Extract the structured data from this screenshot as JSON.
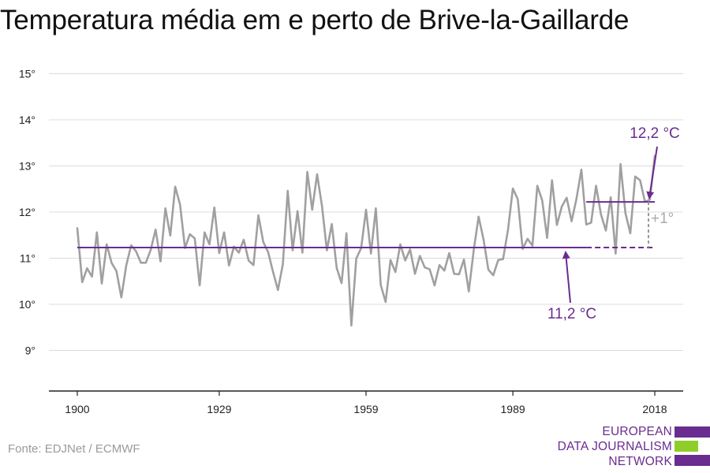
{
  "chart_data": {
    "type": "line",
    "title": "Temperatura média em e perto de Brive-la-Gaillarde",
    "xlabel": "",
    "ylabel": "",
    "xlim": [
      1900,
      2018
    ],
    "ylim": [
      8,
      15
    ],
    "y_ticks": [
      9,
      10,
      11,
      12,
      13,
      14,
      15
    ],
    "y_tick_labels": [
      "9°",
      "10°",
      "11°",
      "12°",
      "13°",
      "14°",
      "15°"
    ],
    "x_ticks": [
      1900,
      1929,
      1959,
      1989,
      2018
    ],
    "x_tick_labels": [
      "1900",
      "1929",
      "1959",
      "1989",
      "2018"
    ],
    "grid": true,
    "series": [
      {
        "color": "#a0a0a0",
        "x": [
          1900,
          1901,
          1902,
          1903,
          1904,
          1905,
          1906,
          1907,
          1908,
          1909,
          1910,
          1911,
          1912,
          1913,
          1914,
          1915,
          1916,
          1917,
          1918,
          1919,
          1920,
          1921,
          1922,
          1923,
          1924,
          1925,
          1926,
          1927,
          1928,
          1929,
          1930,
          1931,
          1932,
          1933,
          1934,
          1935,
          1936,
          1937,
          1938,
          1939,
          1940,
          1941,
          1942,
          1943,
          1944,
          1945,
          1946,
          1947,
          1948,
          1949,
          1950,
          1951,
          1952,
          1953,
          1954,
          1955,
          1956,
          1957,
          1958,
          1959,
          1960,
          1961,
          1962,
          1963,
          1964,
          1965,
          1966,
          1967,
          1968,
          1969,
          1970,
          1971,
          1972,
          1973,
          1974,
          1975,
          1976,
          1977,
          1978,
          1979,
          1980,
          1981,
          1982,
          1983,
          1984,
          1985,
          1986,
          1987,
          1988,
          1989,
          1990,
          1991,
          1992,
          1993,
          1994,
          1995,
          1996,
          1997,
          1998,
          1999,
          2000,
          2001,
          2002,
          2003,
          2004,
          2005,
          2006,
          2007,
          2008,
          2009,
          2010,
          2011,
          2012,
          2013,
          2014,
          2015,
          2016,
          2017,
          2018
        ],
        "values": [
          11.65,
          10.48,
          10.78,
          10.6,
          11.56,
          10.45,
          11.3,
          10.9,
          10.72,
          10.15,
          10.84,
          11.28,
          11.15,
          10.9,
          10.9,
          11.18,
          11.62,
          10.93,
          12.08,
          11.49,
          12.55,
          12.16,
          11.22,
          11.52,
          11.43,
          10.41,
          11.56,
          11.3,
          12.1,
          11.11,
          11.56,
          10.84,
          11.25,
          11.12,
          11.4,
          10.95,
          10.85,
          11.93,
          11.35,
          11.13,
          10.7,
          10.31,
          10.87,
          12.46,
          11.17,
          12.02,
          11.12,
          12.87,
          12.05,
          12.82,
          12.13,
          11.17,
          11.74,
          10.79,
          10.46,
          11.54,
          9.54,
          10.99,
          11.22,
          12.05,
          11.1,
          12.08,
          10.42,
          10.05,
          10.96,
          10.7,
          11.3,
          10.95,
          11.19,
          10.66,
          11.05,
          10.8,
          10.76,
          10.41,
          10.85,
          10.73,
          11.11,
          10.66,
          10.65,
          10.97,
          10.28,
          11.17,
          11.9,
          11.41,
          10.75,
          10.63,
          10.96,
          10.98,
          11.61,
          12.51,
          12.28,
          11.2,
          11.42,
          11.27,
          12.57,
          12.25,
          11.44,
          12.69,
          11.72,
          12.12,
          12.31,
          11.8,
          12.29,
          12.92,
          11.73,
          11.77,
          12.57,
          11.95,
          11.6,
          12.32,
          11.1,
          13.04,
          11.98,
          11.54,
          12.77,
          12.69,
          12.22,
          12.27,
          13.22
        ]
      }
    ],
    "reference_lines": [
      {
        "label": "11,2 °C",
        "value": 11.23,
        "x_start": 1900,
        "x_solid_end": 2004,
        "x_end": 2018,
        "color": "#6a2c8f"
      },
      {
        "label": "12,2 °C",
        "value": 12.22,
        "x_start": 2004,
        "x_end": 2018,
        "color": "#6a2c8f"
      }
    ],
    "difference_label": "+1°"
  },
  "source": "Fonte: EDJNet / ECMWF",
  "logo": {
    "lines": [
      "EUROPEAN",
      "DATA JOURNALISM",
      "NETWORK"
    ],
    "color_purple": "#6a2c8f",
    "color_green": "#8fce2a"
  }
}
